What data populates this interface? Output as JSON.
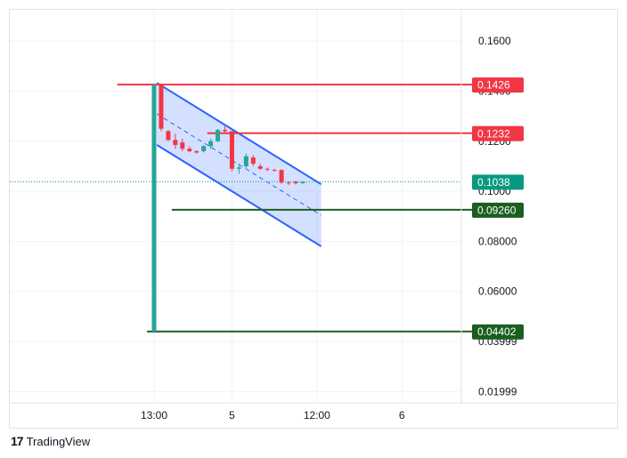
{
  "brand": {
    "logo_glyph": "17",
    "name": "TradingView"
  },
  "colors": {
    "up": "#26a69a",
    "down": "#f23645",
    "channel_line": "#2962ff",
    "channel_fill": "#2962ff",
    "red_level": "#f23645",
    "green_level": "#1b5e20",
    "current_price": "#089981",
    "grid": "#f0f3fa"
  },
  "chart_data": {
    "type": "candlestick",
    "y_axis": {
      "ticks": [
        "0.1600",
        "0.1400",
        "0.1200",
        "0.1000",
        "0.08000",
        "0.06000",
        "0.03999",
        "0.01999"
      ],
      "tick_values": [
        0.16,
        0.14,
        0.12,
        0.1,
        0.08,
        0.06,
        0.03999,
        0.01999
      ],
      "range": [
        0.0155,
        0.17
      ]
    },
    "x_axis": {
      "ticks": [
        "13:00",
        "5",
        "12:00",
        "6"
      ],
      "tick_index": [
        0,
        11,
        23,
        35
      ]
    },
    "candles": [
      {
        "i": 0,
        "o": 0.044,
        "h": 0.1426,
        "l": 0.044,
        "c": 0.1426
      },
      {
        "i": 1,
        "o": 0.1426,
        "h": 0.143,
        "l": 0.124,
        "c": 0.125
      },
      {
        "i": 2,
        "o": 0.124,
        "h": 0.1245,
        "l": 0.12,
        "c": 0.1205
      },
      {
        "i": 3,
        "o": 0.1205,
        "h": 0.123,
        "l": 0.117,
        "c": 0.1185
      },
      {
        "i": 4,
        "o": 0.1195,
        "h": 0.121,
        "l": 0.116,
        "c": 0.117
      },
      {
        "i": 5,
        "o": 0.117,
        "h": 0.118,
        "l": 0.1155,
        "c": 0.116
      },
      {
        "i": 6,
        "o": 0.116,
        "h": 0.1165,
        "l": 0.115,
        "c": 0.1155
      },
      {
        "i": 7,
        "o": 0.116,
        "h": 0.1185,
        "l": 0.1155,
        "c": 0.118
      },
      {
        "i": 8,
        "o": 0.118,
        "h": 0.121,
        "l": 0.117,
        "c": 0.12
      },
      {
        "i": 9,
        "o": 0.12,
        "h": 0.125,
        "l": 0.1195,
        "c": 0.1245
      },
      {
        "i": 10,
        "o": 0.1245,
        "h": 0.126,
        "l": 0.123,
        "c": 0.124
      },
      {
        "i": 11,
        "o": 0.124,
        "h": 0.124,
        "l": 0.108,
        "c": 0.109
      },
      {
        "i": 12,
        "o": 0.109,
        "h": 0.111,
        "l": 0.107,
        "c": 0.1095
      },
      {
        "i": 13,
        "o": 0.11,
        "h": 0.115,
        "l": 0.109,
        "c": 0.114
      },
      {
        "i": 14,
        "o": 0.1135,
        "h": 0.1145,
        "l": 0.11,
        "c": 0.111
      },
      {
        "i": 15,
        "o": 0.11,
        "h": 0.111,
        "l": 0.1085,
        "c": 0.109
      },
      {
        "i": 16,
        "o": 0.109,
        "h": 0.1095,
        "l": 0.108,
        "c": 0.1088
      },
      {
        "i": 17,
        "o": 0.1085,
        "h": 0.109,
        "l": 0.108,
        "c": 0.1082
      },
      {
        "i": 18,
        "o": 0.1085,
        "h": 0.1088,
        "l": 0.103,
        "c": 0.1035
      },
      {
        "i": 19,
        "o": 0.1035,
        "h": 0.104,
        "l": 0.1025,
        "c": 0.1033
      },
      {
        "i": 20,
        "o": 0.1038,
        "h": 0.1042,
        "l": 0.1028,
        "c": 0.1032
      },
      {
        "i": 21,
        "o": 0.1032,
        "h": 0.104,
        "l": 0.103,
        "c": 0.1038
      }
    ],
    "levels": [
      {
        "value": 0.1426,
        "label": "0.1426",
        "kind": "red",
        "start_index": -5.2
      },
      {
        "value": 0.1232,
        "label": "0.1232",
        "kind": "red",
        "start_index": 7.5
      },
      {
        "value": 0.0926,
        "label": "0.09260",
        "kind": "green",
        "start_index": 2.5
      },
      {
        "value": 0.04402,
        "label": "0.04402",
        "kind": "green",
        "start_index": -1.0
      }
    ],
    "current_price": {
      "value": 0.1038,
      "label": "0.1038"
    },
    "channel": {
      "upper": [
        [
          0.4,
          0.1433
        ],
        [
          23.6,
          0.1028
        ]
      ],
      "lower": [
        [
          0.4,
          0.1185
        ],
        [
          23.6,
          0.078
        ]
      ],
      "mid": [
        [
          0.4,
          0.1309
        ],
        [
          23.6,
          0.0904
        ]
      ]
    }
  }
}
